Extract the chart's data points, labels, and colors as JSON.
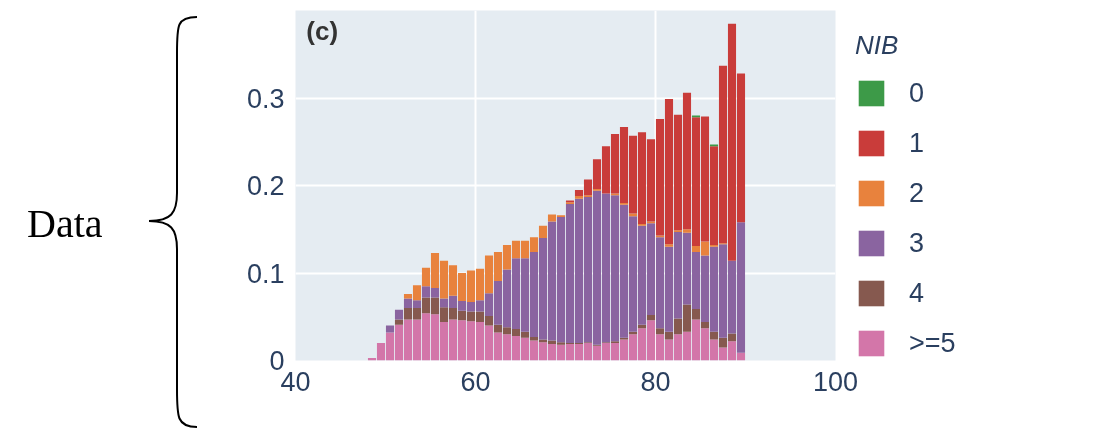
{
  "chart_data": {
    "type": "bar",
    "stacked": true,
    "annotations": [
      "(c)",
      "Data"
    ],
    "legend_title": "NIB",
    "legend": "right",
    "grid": true,
    "xlim": [
      40,
      100
    ],
    "xticks": [
      40,
      60,
      80,
      100
    ],
    "ylim": [
      0,
      0.4
    ],
    "yticks": [
      0,
      0.1,
      0.2,
      0.3
    ],
    "x": [
      48.5,
      49.5,
      50.5,
      51.5,
      52.5,
      53.5,
      54.5,
      55.5,
      56.5,
      57.5,
      58.5,
      59.5,
      60.5,
      61.5,
      62.5,
      63.5,
      64.5,
      65.5,
      66.5,
      67.5,
      68.5,
      69.5,
      70.5,
      71.5,
      72.5,
      73.5,
      74.5,
      75.5,
      76.5,
      77.5,
      78.5,
      79.5,
      80.5,
      81.5,
      82.5,
      83.5,
      84.5,
      85.5,
      86.5,
      87.5,
      88.5,
      89.5
    ],
    "series": [
      {
        "name": ">=5",
        "color": "#d376a9",
        "values": [
          0.003,
          0.02,
          0.032,
          0.041,
          0.047,
          0.047,
          0.054,
          0.053,
          0.044,
          0.047,
          0.046,
          0.045,
          0.044,
          0.04,
          0.032,
          0.03,
          0.028,
          0.026,
          0.023,
          0.021,
          0.019,
          0.018,
          0.019,
          0.019,
          0.02,
          0.017,
          0.02,
          0.02,
          0.024,
          0.03,
          0.037,
          0.046,
          0.03,
          0.024,
          0.03,
          0.033,
          0.047,
          0.037,
          0.024,
          0.015,
          0.022,
          0.009
        ]
      },
      {
        "name": "4",
        "color": "#86594f",
        "values": [
          0,
          0,
          0,
          0.006,
          0.013,
          0.013,
          0.018,
          0.019,
          0.017,
          0.013,
          0.011,
          0.011,
          0.012,
          0.011,
          0.009,
          0.008,
          0.008,
          0.007,
          0.004,
          0.003,
          0.004,
          0.003,
          0.001,
          0.001,
          0.001,
          0.001,
          0.001,
          0.002,
          0.002,
          0.003,
          0.004,
          0.006,
          0.007,
          0.009,
          0.018,
          0.031,
          0.012,
          0.007,
          0.009,
          0.011,
          0.009,
          0
        ]
      },
      {
        "name": "3",
        "color": "#8a64a0",
        "values": [
          0,
          0,
          0.008,
          0.011,
          0.011,
          0.009,
          0.013,
          0.011,
          0.01,
          0.014,
          0.011,
          0.011,
          0.013,
          0.026,
          0.05,
          0.066,
          0.081,
          0.084,
          0.097,
          0.116,
          0.136,
          0.143,
          0.159,
          0.165,
          0.166,
          0.176,
          0.17,
          0.167,
          0.152,
          0.132,
          0.113,
          0.105,
          0.104,
          0.097,
          0.099,
          0.082,
          0.065,
          0.076,
          0.097,
          0.107,
          0.083,
          0.149
        ]
      },
      {
        "name": "2",
        "color": "#e8823d",
        "values": [
          0,
          0,
          0,
          0,
          0.005,
          0.017,
          0.021,
          0.04,
          0.043,
          0.035,
          0.032,
          0.036,
          0.036,
          0.043,
          0.033,
          0.028,
          0.02,
          0.02,
          0.017,
          0.014,
          0.008,
          0.002,
          0.002,
          0.003,
          0.002,
          0.002,
          0,
          0.002,
          0.002,
          0.003,
          0.002,
          0.002,
          0.002,
          0.003,
          0.002,
          0.004,
          0.007,
          0.016,
          0.002,
          0.001,
          0,
          0
        ]
      },
      {
        "name": "1",
        "color": "#c93c3a",
        "values": [
          0,
          0,
          0,
          0,
          0,
          0,
          0,
          0,
          0,
          0,
          0,
          0,
          0,
          0,
          0,
          0,
          0,
          0,
          0,
          0,
          0,
          0,
          0.002,
          0.007,
          0.018,
          0.034,
          0.054,
          0.068,
          0.087,
          0.089,
          0.105,
          0.094,
          0.133,
          0.166,
          0.132,
          0.156,
          0.147,
          0.143,
          0.113,
          0.203,
          0.271,
          0.17
        ]
      },
      {
        "name": "0",
        "color": "#3d9a48",
        "values": [
          0,
          0,
          0,
          0,
          0,
          0,
          0,
          0,
          0,
          0,
          0,
          0,
          0,
          0,
          0,
          0,
          0,
          0,
          0,
          0,
          0,
          0,
          0,
          0,
          0,
          0,
          0,
          0,
          0,
          0,
          0,
          0,
          0,
          0,
          0,
          0,
          0.002,
          0,
          0.002,
          0,
          0,
          0
        ]
      }
    ]
  }
}
